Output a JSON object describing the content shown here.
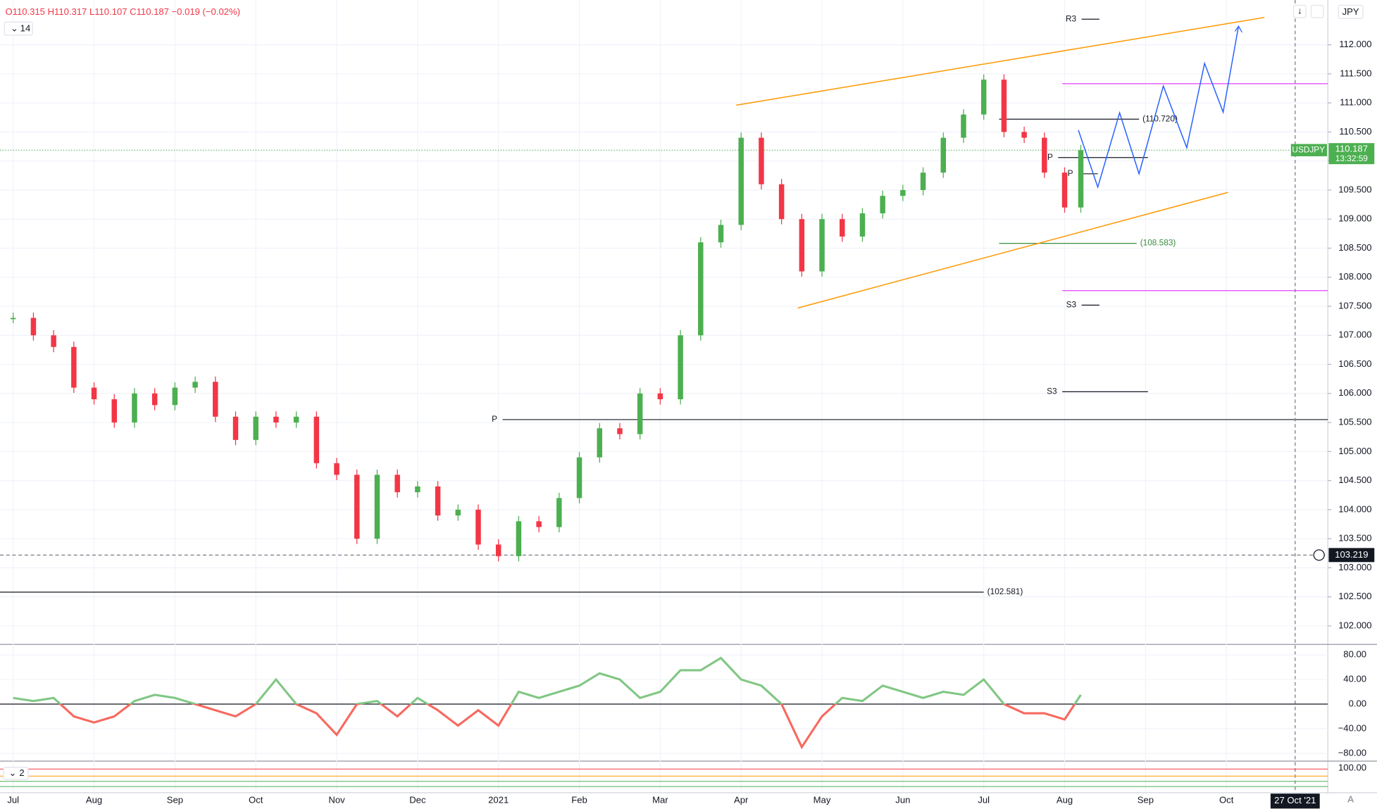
{
  "header": {
    "ohlc": "O110.315 H110.317 L110.107 C110.187 −0.019 (−0.02%)",
    "length": "14",
    "currency": "JPY",
    "countdown": "13:32:59",
    "crosshair_price": "103.219",
    "crosshair_date": "27 Oct '21"
  },
  "chart_data": [
    {
      "type": "candlestick",
      "x": [
        0,
        0.25,
        0.5,
        0.75,
        1,
        1.25,
        1.5,
        1.75,
        2,
        2.25,
        2.5,
        2.75,
        3,
        3.25,
        3.5,
        3.75,
        4,
        4.25,
        4.5,
        4.75,
        5,
        5.25,
        5.5,
        5.75,
        6,
        6.25,
        6.5,
        6.75,
        7,
        7.25,
        7.5,
        7.75,
        8,
        8.25,
        8.5,
        8.75,
        9,
        9.25,
        9.5,
        9.75,
        10,
        10.25,
        10.5,
        10.75,
        11,
        11.25,
        11.5,
        11.75,
        12,
        12.25,
        12.5,
        12.75,
        13,
        13.2
      ],
      "series": [
        {
          "name": "USDJPY",
          "up_color": "#4caf50",
          "down_color": "#f23645",
          "values": [
            107.3,
            107.0,
            106.8,
            106.1,
            105.9,
            105.5,
            106.0,
            105.8,
            106.1,
            106.2,
            105.6,
            105.2,
            105.6,
            105.5,
            105.6,
            104.8,
            104.6,
            103.5,
            104.6,
            104.3,
            104.4,
            103.9,
            104.0,
            103.4,
            103.2,
            103.8,
            103.7,
            104.2,
            104.9,
            105.4,
            105.3,
            106.0,
            105.9,
            107.0,
            108.6,
            108.9,
            110.4,
            109.6,
            109.0,
            108.1,
            109.0,
            108.7,
            109.1,
            109.4,
            109.5,
            109.8,
            110.4,
            110.8,
            111.4,
            110.5,
            110.4,
            109.8,
            109.2,
            110.187
          ]
        }
      ],
      "last_price": {
        "value": 110.187,
        "label": "110.187"
      },
      "xlim": [
        -0.163,
        16.254
      ],
      "xticks": [
        {
          "value": 0,
          "label": "Jul"
        },
        {
          "value": 1,
          "label": "Aug"
        },
        {
          "value": 2,
          "label": "Sep"
        },
        {
          "value": 3,
          "label": "Oct"
        },
        {
          "value": 4,
          "label": "Nov"
        },
        {
          "value": 5,
          "label": "Dec"
        },
        {
          "value": 6,
          "label": "2021"
        },
        {
          "value": 7,
          "label": "Feb"
        },
        {
          "value": 8,
          "label": "Mar"
        },
        {
          "value": 9,
          "label": "Apr"
        },
        {
          "value": 10,
          "label": "May"
        },
        {
          "value": 11,
          "label": "Jun"
        },
        {
          "value": 12,
          "label": "Jul"
        },
        {
          "value": 13,
          "label": "Aug"
        },
        {
          "value": 14,
          "label": "Sep"
        },
        {
          "value": 15,
          "label": "Oct"
        }
      ],
      "ylim": [
        101.697,
        112.77
      ],
      "yticks": [
        {
          "value": 102,
          "label": "102.000"
        },
        {
          "value": 102.5,
          "label": "102.500"
        },
        {
          "value": 103,
          "label": "103.000"
        },
        {
          "value": 103.5,
          "label": "103.500"
        },
        {
          "value": 104,
          "label": "104.000"
        },
        {
          "value": 104.5,
          "label": "104.500"
        },
        {
          "value": 105,
          "label": "105.000"
        },
        {
          "value": 105.5,
          "label": "105.500"
        },
        {
          "value": 106,
          "label": "106.000"
        },
        {
          "value": 106.5,
          "label": "106.500"
        },
        {
          "value": 107,
          "label": "107.000"
        },
        {
          "value": 107.5,
          "label": "107.500"
        },
        {
          "value": 108,
          "label": "108.000"
        },
        {
          "value": 108.5,
          "label": "108.500"
        },
        {
          "value": 109,
          "label": "109.000"
        },
        {
          "value": 109.5,
          "label": "109.500"
        },
        {
          "value": 110,
          "label": "110.000"
        },
        {
          "value": 110.5,
          "label": "110.500"
        },
        {
          "value": 111,
          "label": "111.000"
        },
        {
          "value": 111.5,
          "label": "111.500"
        },
        {
          "value": 112,
          "label": "112.000"
        }
      ],
      "grid": true,
      "levels": [
        {
          "label": "(110.720)",
          "value": 110.72,
          "x": [
            12.19,
            13.92
          ],
          "color": "#131722",
          "label_side": "right"
        },
        {
          "label": "(108.583)",
          "value": 108.583,
          "x": [
            12.19,
            13.89
          ],
          "color": "#388e3c",
          "label_side": "right"
        },
        {
          "label": "(102.581)",
          "value": 102.581,
          "x": [
            -0.163,
            12.0
          ],
          "color": "#131722",
          "label_side": "right"
        },
        {
          "label": "P",
          "value": 105.55,
          "x": [
            6.05,
            16.254
          ],
          "color": "#131722",
          "label_side": "left"
        },
        {
          "label": "R3",
          "value": 112.44,
          "x": [
            13.21,
            13.43
          ],
          "color": "#131722",
          "label_side": "left"
        },
        {
          "label": "S3",
          "value": 107.52,
          "x": [
            13.21,
            13.43
          ],
          "color": "#131722",
          "label_side": "left"
        },
        {
          "label": "S3",
          "value": 106.03,
          "x": [
            12.97,
            14.03
          ],
          "color": "#131722",
          "label_side": "left"
        },
        {
          "label": "P",
          "value": 110.06,
          "x": [
            12.92,
            14.03
          ],
          "color": "#131722",
          "label_side": "left"
        },
        {
          "label": "P",
          "value": 109.78,
          "x": [
            13.17,
            13.41
          ],
          "color": "#131722",
          "label_side": "left"
        },
        {
          "value": 111.33,
          "x": [
            12.97,
            16.254
          ],
          "color": "#e040fb"
        },
        {
          "value": 107.77,
          "x": [
            12.97,
            16.254
          ],
          "color": "#e040fb"
        }
      ],
      "trendlines": [
        {
          "x": [
            8.94,
            15.47
          ],
          "y": [
            110.96,
            112.47
          ],
          "color": "#ff9800"
        },
        {
          "x": [
            9.7,
            15.02
          ],
          "y": [
            107.47,
            109.46
          ],
          "color": "#ff9800"
        }
      ],
      "projection": {
        "x": [
          13.17,
          13.41,
          13.68,
          13.92,
          14.22,
          14.51,
          14.73,
          14.96,
          15.15
        ],
        "y": [
          110.53,
          109.55,
          110.83,
          109.78,
          111.29,
          110.23,
          111.68,
          110.84,
          112.32
        ],
        "color": "#2962ff"
      },
      "crosshair": {
        "x": 15.85,
        "y": 103.219
      }
    },
    {
      "type": "oscillator",
      "length": "2",
      "x": [
        0,
        0.25,
        0.5,
        0.75,
        1,
        1.25,
        1.5,
        1.75,
        2,
        2.25,
        2.5,
        2.75,
        3,
        3.25,
        3.5,
        3.75,
        4,
        4.25,
        4.5,
        4.75,
        5,
        5.25,
        5.5,
        5.75,
        6,
        6.25,
        6.5,
        6.75,
        7,
        7.25,
        7.5,
        7.75,
        8,
        8.25,
        8.5,
        8.75,
        9,
        9.25,
        9.5,
        9.75,
        10,
        10.25,
        10.5,
        10.75,
        11,
        11.25,
        11.5,
        11.75,
        12,
        12.25,
        12.5,
        12.75,
        13,
        13.2
      ],
      "series": [
        {
          "up_color": "#81c784",
          "down_color": "#f7695f",
          "values": [
            10,
            5,
            10,
            -20,
            -30,
            -20,
            5,
            15,
            10,
            0,
            -10,
            -20,
            0,
            40,
            0,
            -15,
            -50,
            0,
            5,
            -20,
            10,
            -10,
            -35,
            -10,
            -35,
            20,
            10,
            20,
            30,
            50,
            40,
            10,
            20,
            55,
            55,
            75,
            40,
            30,
            0,
            -70,
            -20,
            10,
            5,
            30,
            20,
            10,
            20,
            15,
            40,
            0,
            -15,
            -15,
            -25,
            15
          ]
        }
      ],
      "ylim": [
        -91.4,
        95.7
      ],
      "yticks": [
        {
          "value": 80,
          "label": "80.00"
        },
        {
          "value": 40,
          "label": "40.00"
        },
        {
          "value": 0,
          "label": "0.00"
        },
        {
          "value": -40,
          "label": "−40.00"
        },
        {
          "value": -80,
          "label": "−80.00"
        }
      ]
    },
    {
      "type": "bands",
      "ylim": [
        85,
        104
      ],
      "yticks": [
        {
          "value": 100,
          "label": "100.00"
        }
      ]
    }
  ]
}
